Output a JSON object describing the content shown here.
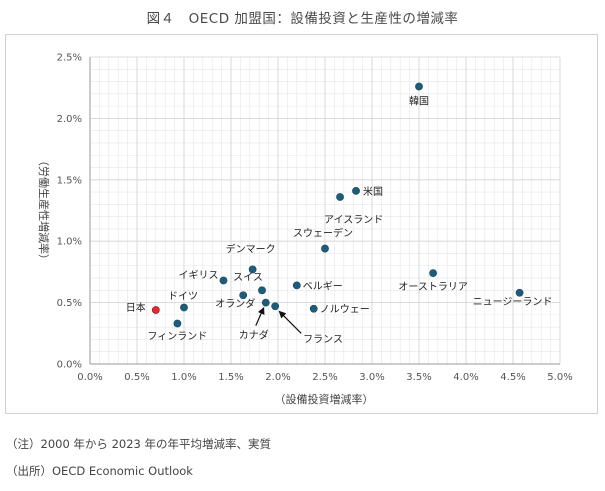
{
  "title": "図４　OECD 加盟国：設備投資と生産性の増減率",
  "notes": {
    "note": "（注）2000 年から 2023 年の年平均増減率、実質",
    "source": "（出所）OECD Economic Outlook"
  },
  "chart_data": {
    "type": "scatter",
    "xlabel": "（設備投資増減率）",
    "ylabel": "（労働生産性増減率）",
    "xlim": [
      0,
      5
    ],
    "ylim": [
      0,
      2.5
    ],
    "x_ticks": [
      0,
      0.5,
      1.0,
      1.5,
      2.0,
      2.5,
      3.0,
      3.5,
      4.0,
      4.5,
      5.0
    ],
    "y_ticks": [
      0,
      0.5,
      1.0,
      1.5,
      2.0,
      2.5
    ],
    "x_tick_labels": [
      "0.0%",
      "0.5%",
      "1.0%",
      "1.5%",
      "2.0%",
      "2.5%",
      "3.0%",
      "3.5%",
      "4.0%",
      "4.5%",
      "5.0%"
    ],
    "y_tick_labels": [
      "0.0%",
      "0.5%",
      "1.0%",
      "1.5%",
      "2.0%",
      "2.5%"
    ],
    "grid": true,
    "colors": {
      "point": "#1f5c7a",
      "highlight": "#e8262c",
      "grid": "#e6e6e6"
    },
    "points": [
      {
        "label": "韓国",
        "x": 3.5,
        "y": 2.26,
        "highlight": false
      },
      {
        "label": "米国",
        "x": 2.83,
        "y": 1.41,
        "highlight": false
      },
      {
        "label": "アイスランド",
        "x": 2.66,
        "y": 1.36,
        "highlight": false
      },
      {
        "label": "スウェーデン",
        "x": 2.5,
        "y": 0.94,
        "highlight": false
      },
      {
        "label": "デンマーク",
        "x": 1.73,
        "y": 0.77,
        "highlight": false
      },
      {
        "label": "オーストラリア",
        "x": 3.65,
        "y": 0.74,
        "highlight": false
      },
      {
        "label": "イギリス",
        "x": 1.42,
        "y": 0.68,
        "highlight": false
      },
      {
        "label": "ベルギー",
        "x": 2.2,
        "y": 0.64,
        "highlight": false
      },
      {
        "label": "スイス",
        "x": 1.83,
        "y": 0.6,
        "highlight": false
      },
      {
        "label": "ニュージーランド",
        "x": 4.57,
        "y": 0.58,
        "highlight": false
      },
      {
        "label": "オランダ",
        "x": 1.63,
        "y": 0.56,
        "highlight": false
      },
      {
        "label": "カナダ",
        "x": 1.87,
        "y": 0.5,
        "highlight": false
      },
      {
        "label": "フランス",
        "x": 1.97,
        "y": 0.47,
        "highlight": false
      },
      {
        "label": "ドイツ",
        "x": 1.0,
        "y": 0.46,
        "highlight": false
      },
      {
        "label": "ノルウェー",
        "x": 2.38,
        "y": 0.45,
        "highlight": false
      },
      {
        "label": "日本",
        "x": 0.7,
        "y": 0.44,
        "highlight": true
      },
      {
        "label": "フィンランド",
        "x": 0.93,
        "y": 0.33,
        "highlight": false
      }
    ]
  }
}
